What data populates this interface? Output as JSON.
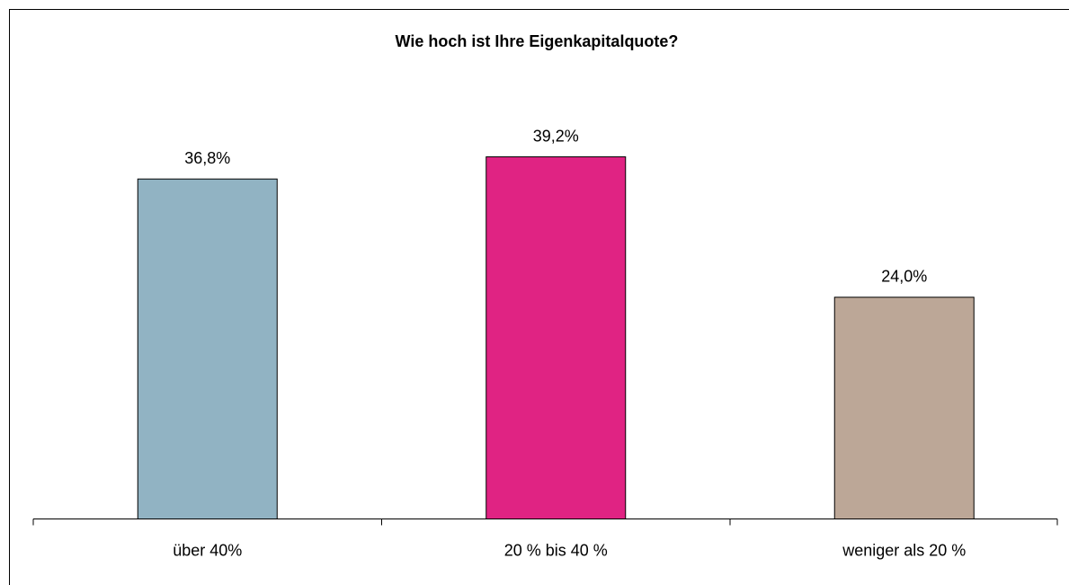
{
  "chart_data": {
    "type": "bar",
    "title": "Wie hoch ist Ihre Eigenkapitalquote?",
    "categories": [
      "über 40%",
      "20 % bis 40 %",
      "weniger als 20 %"
    ],
    "values": [
      36.8,
      39.2,
      24.0
    ],
    "value_labels": [
      "36,8%",
      "39,2%",
      "24,0%"
    ],
    "colors": [
      "#91b3c3",
      "#e02383",
      "#bca797"
    ],
    "ylim": [
      0,
      50
    ]
  }
}
